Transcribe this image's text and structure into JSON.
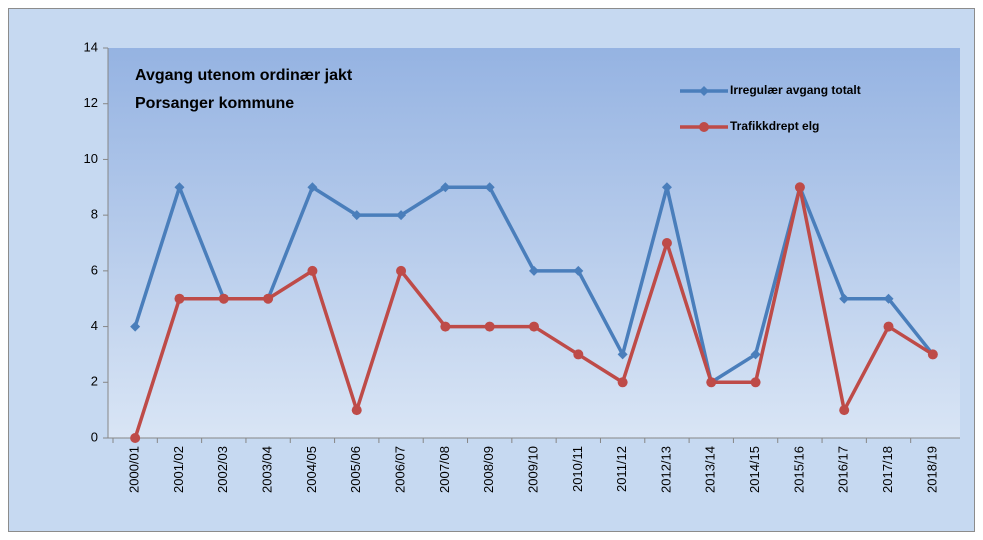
{
  "chart_data": {
    "type": "line",
    "title": "Avgang utenom ordinær jakt",
    "subtitle": "Porsanger kommune",
    "categories": [
      "2000/01",
      "2001/02",
      "2002/03",
      "2003/04",
      "2004/05",
      "2005/06",
      "2006/07",
      "2007/08",
      "2008/09",
      "2009/10",
      "2010/11",
      "2011/12",
      "2012/13",
      "2013/14",
      "2014/15",
      "2015/16",
      "2016/17",
      "2017/18",
      "2018/19"
    ],
    "series": [
      {
        "name": "Irregulær avgang totalt",
        "color": "#4a7ebb",
        "marker": "diamond",
        "values": [
          4,
          9,
          5,
          5,
          9,
          8,
          8,
          9,
          9,
          6,
          6,
          3,
          9,
          2,
          3,
          9,
          5,
          5,
          3
        ]
      },
      {
        "name": "Trafikkdrept elg",
        "color": "#be4b48",
        "marker": "circle",
        "values": [
          0,
          5,
          5,
          5,
          6,
          1,
          6,
          4,
          4,
          4,
          3,
          2,
          7,
          2,
          2,
          9,
          1,
          4,
          3
        ]
      }
    ],
    "ylim": [
      0,
      14
    ],
    "yticks": [
      0,
      2,
      4,
      6,
      8,
      10,
      12,
      14
    ],
    "grid": false,
    "legend": "top-right"
  }
}
